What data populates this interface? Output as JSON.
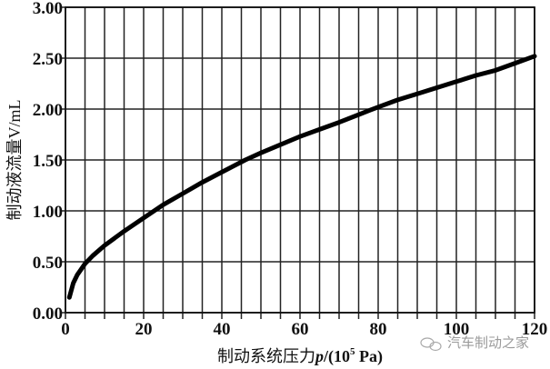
{
  "chart_data": {
    "type": "line",
    "xlabel": "制动系统压力p/(10⁵ Pa)",
    "xlabel_parts": {
      "text": "制动系统压力",
      "var": "p",
      "unit_pre": "/(10",
      "sup": "5",
      "unit_post": " Pa)"
    },
    "ylabel": "制动液流量V/mL",
    "xlim": [
      0,
      120
    ],
    "ylim": [
      0,
      3
    ],
    "xticks": [
      "0",
      "20",
      "40",
      "60",
      "80",
      "100",
      "120"
    ],
    "yticks": [
      "0.00",
      "0.50",
      "1.00",
      "1.50",
      "2.00",
      "2.50",
      "3.00"
    ],
    "grid": true,
    "grid_x_step": 5,
    "grid_y_step": 0.5,
    "line_color": "#000000",
    "series": [
      {
        "x": [
          1,
          2,
          3,
          5,
          7,
          10,
          15,
          20,
          25,
          30,
          35,
          40,
          46,
          50,
          55,
          60,
          65,
          70,
          78,
          80,
          85,
          90,
          95,
          100,
          105,
          110,
          115,
          120
        ],
        "y": [
          0.15,
          0.29,
          0.37,
          0.48,
          0.56,
          0.66,
          0.8,
          0.93,
          1.06,
          1.17,
          1.28,
          1.38,
          1.5,
          1.57,
          1.65,
          1.73,
          1.8,
          1.87,
          1.99,
          2.02,
          2.09,
          2.15,
          2.21,
          2.27,
          2.33,
          2.38,
          2.45,
          2.52
        ]
      }
    ]
  },
  "watermark": {
    "text": "汽车制动之家",
    "icon": "wechat-icon"
  }
}
